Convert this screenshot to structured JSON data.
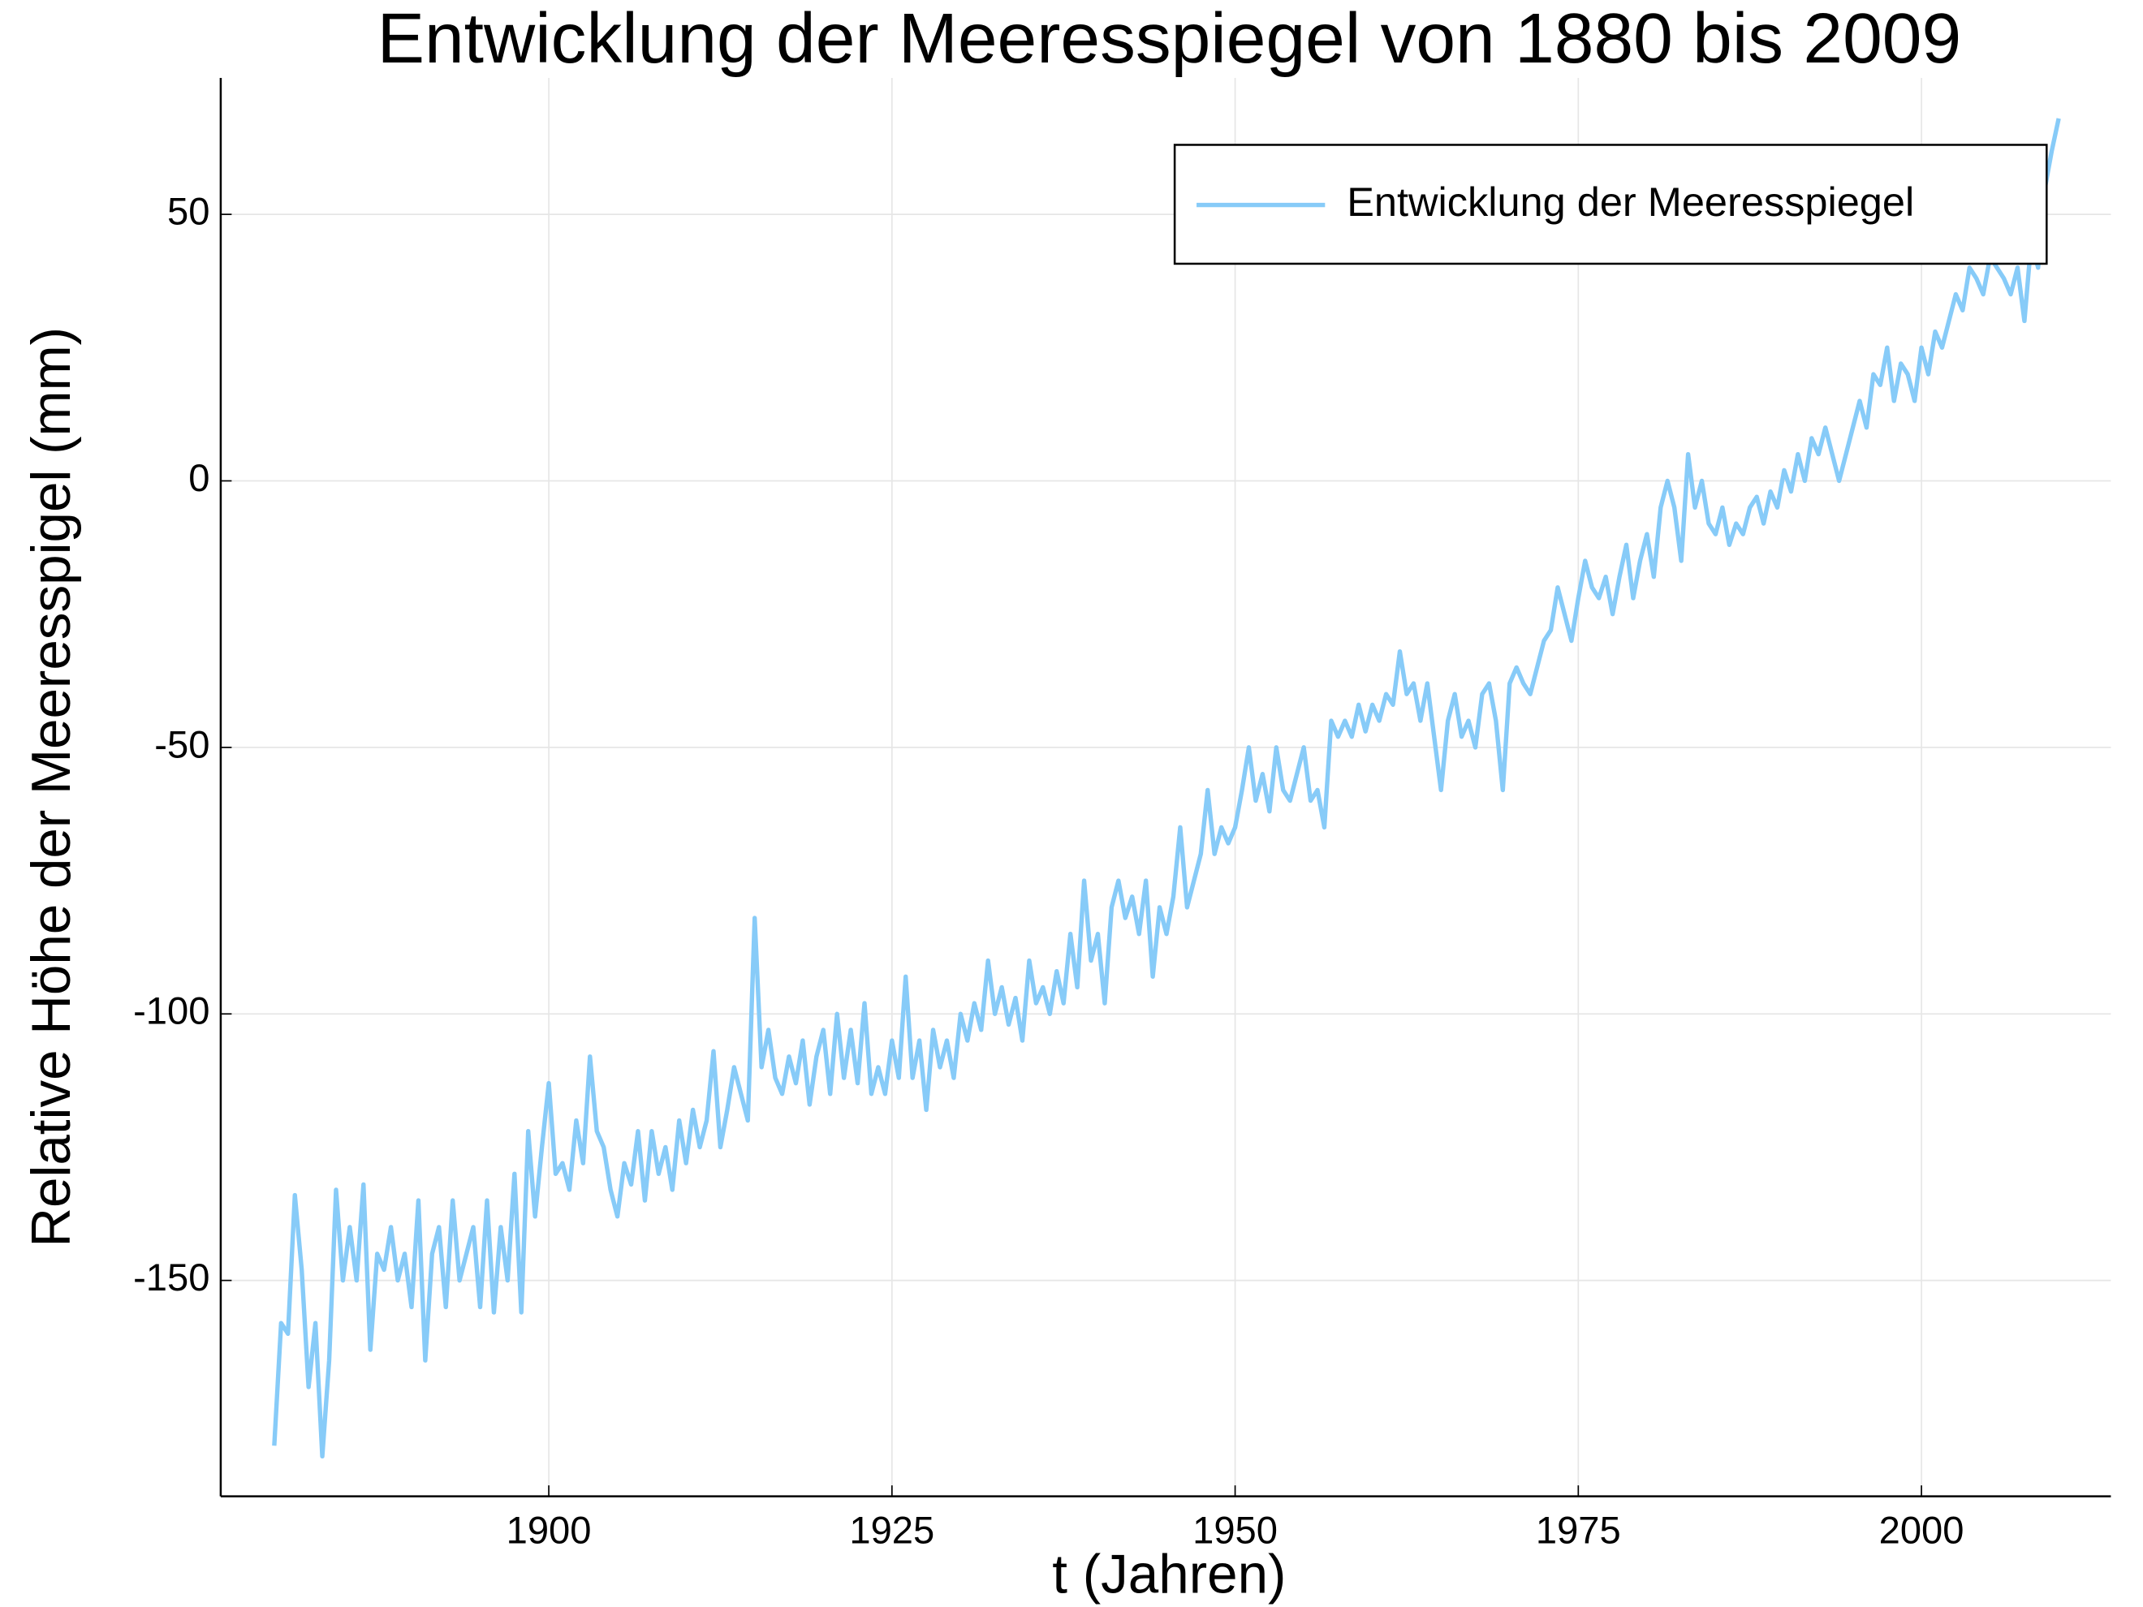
{
  "chart_data": {
    "type": "line",
    "title": "Entwicklung der Meeresspiegel von 1880 bis 2009",
    "xlabel": "t (Jahren)",
    "ylabel": "Relative Höhe der Meeresspigel (mm)",
    "xlim": [
      1876.1,
      2013.8
    ],
    "ylim": [
      -190.5,
      75.6
    ],
    "xticks": [
      1900,
      1925,
      1950,
      1975,
      2000
    ],
    "yticks": [
      -150,
      -100,
      -50,
      0,
      50
    ],
    "grid": true,
    "legend": "top right",
    "x": [
      1880,
      1880.5,
      1881,
      1881.5,
      1882,
      1882.5,
      1883,
      1883.5,
      1884,
      1884.5,
      1885,
      1885.5,
      1886,
      1886.5,
      1887,
      1887.5,
      1888,
      1888.5,
      1889,
      1889.5,
      1890,
      1890.5,
      1891,
      1891.5,
      1892,
      1892.5,
      1893,
      1893.5,
      1894,
      1894.5,
      1895,
      1895.5,
      1896,
      1896.5,
      1897,
      1897.5,
      1898,
      1898.5,
      1899,
      1899.5,
      1900,
      1900.5,
      1901,
      1901.5,
      1902,
      1902.5,
      1903,
      1903.5,
      1904,
      1904.5,
      1905,
      1905.5,
      1906,
      1906.5,
      1907,
      1907.5,
      1908,
      1908.5,
      1909,
      1909.5,
      1910,
      1910.5,
      1911,
      1911.5,
      1912,
      1912.5,
      1913,
      1913.5,
      1914,
      1914.5,
      1915,
      1915.5,
      1916,
      1916.5,
      1917,
      1917.5,
      1918,
      1918.5,
      1919,
      1919.5,
      1920,
      1920.5,
      1921,
      1921.5,
      1922,
      1922.5,
      1923,
      1923.5,
      1924,
      1924.5,
      1925,
      1925.5,
      1926,
      1926.5,
      1927,
      1927.5,
      1928,
      1928.5,
      1929,
      1929.5,
      1930,
      1930.5,
      1931,
      1931.5,
      1932,
      1932.5,
      1933,
      1933.5,
      1934,
      1934.5,
      1935,
      1935.5,
      1936,
      1936.5,
      1937,
      1937.5,
      1938,
      1938.5,
      1939,
      1939.5,
      1940,
      1940.5,
      1941,
      1941.5,
      1942,
      1942.5,
      1943,
      1943.5,
      1944,
      1944.5,
      1945,
      1945.5,
      1946,
      1946.5,
      1947,
      1947.5,
      1948,
      1948.5,
      1949,
      1949.5,
      1950,
      1950.5,
      1951,
      1951.5,
      1952,
      1952.5,
      1953,
      1953.5,
      1954,
      1954.5,
      1955,
      1955.5,
      1956,
      1956.5,
      1957,
      1957.5,
      1958,
      1958.5,
      1959,
      1959.5,
      1960,
      1960.5,
      1961,
      1961.5,
      1962,
      1962.5,
      1963,
      1963.5,
      1964,
      1964.5,
      1965,
      1965.5,
      1966,
      1966.5,
      1967,
      1967.5,
      1968,
      1968.5,
      1969,
      1969.5,
      1970,
      1970.5,
      1971,
      1971.5,
      1972,
      1972.5,
      1973,
      1973.5,
      1974,
      1974.5,
      1975,
      1975.5,
      1976,
      1976.5,
      1977,
      1977.5,
      1978,
      1978.5,
      1979,
      1979.5,
      1980,
      1980.5,
      1981,
      1981.5,
      1982,
      1982.5,
      1983,
      1983.5,
      1984,
      1984.5,
      1985,
      1985.5,
      1986,
      1986.5,
      1987,
      1987.5,
      1988,
      1988.5,
      1989,
      1989.5,
      1990,
      1990.5,
      1991,
      1991.5,
      1992,
      1992.5,
      1993,
      1993.5,
      1994,
      1994.5,
      1995,
      1995.5,
      1996,
      1996.5,
      1997,
      1997.5,
      1998,
      1998.5,
      1999,
      1999.5,
      2000,
      2000.5,
      2001,
      2001.5,
      2002,
      2002.5,
      2003,
      2003.5,
      2004,
      2004.5,
      2005,
      2005.5,
      2006,
      2006.5,
      2007,
      2007.5,
      2008,
      2008.5,
      2009,
      2009.5,
      2010
    ],
    "series": [
      {
        "name": "Entwicklung der Meeresspiegel",
        "color": "#87cbf8",
        "values": [
          -181,
          -158,
          -160,
          -134,
          -148,
          -170,
          -158,
          -183,
          -165,
          -133,
          -150,
          -140,
          -150,
          -132,
          -163,
          -145,
          -148,
          -140,
          -150,
          -145,
          -155,
          -135,
          -165,
          -145,
          -140,
          -155,
          -135,
          -150,
          -145,
          -140,
          -155,
          -135,
          -156,
          -140,
          -150,
          -130,
          -156,
          -122,
          -138,
          -125,
          -113,
          -130,
          -128,
          -133,
          -120,
          -128,
          -108,
          -122,
          -125,
          -133,
          -138,
          -128,
          -132,
          -122,
          -135,
          -122,
          -130,
          -125,
          -133,
          -120,
          -128,
          -118,
          -125,
          -120,
          -107,
          -125,
          -118,
          -110,
          -115,
          -120,
          -82,
          -110,
          -103,
          -112,
          -115,
          -108,
          -113,
          -105,
          -117,
          -108,
          -103,
          -115,
          -100,
          -112,
          -103,
          -113,
          -98,
          -115,
          -110,
          -115,
          -105,
          -112,
          -93,
          -112,
          -105,
          -118,
          -103,
          -110,
          -105,
          -112,
          -100,
          -105,
          -98,
          -103,
          -90,
          -100,
          -95,
          -102,
          -97,
          -105,
          -90,
          -98,
          -95,
          -100,
          -92,
          -98,
          -85,
          -95,
          -75,
          -90,
          -85,
          -98,
          -80,
          -75,
          -82,
          -78,
          -85,
          -75,
          -93,
          -80,
          -85,
          -78,
          -65,
          -80,
          -75,
          -70,
          -58,
          -70,
          -65,
          -68,
          -65,
          -58,
          -50,
          -60,
          -55,
          -62,
          -50,
          -58,
          -60,
          -55,
          -50,
          -60,
          -58,
          -65,
          -45,
          -48,
          -45,
          -48,
          -42,
          -47,
          -42,
          -45,
          -40,
          -42,
          -32,
          -40,
          -38,
          -45,
          -38,
          -48,
          -58,
          -45,
          -40,
          -48,
          -45,
          -50,
          -40,
          -38,
          -45,
          -58,
          -38,
          -35,
          -38,
          -40,
          -35,
          -30,
          -28,
          -20,
          -25,
          -30,
          -22,
          -15,
          -20,
          -22,
          -18,
          -25,
          -18,
          -12,
          -22,
          -15,
          -10,
          -18,
          -5,
          0,
          -5,
          -15,
          5,
          -5,
          0,
          -8,
          -10,
          -5,
          -12,
          -8,
          -10,
          -5,
          -3,
          -8,
          -2,
          -5,
          2,
          -2,
          5,
          0,
          8,
          5,
          10,
          5,
          0,
          5,
          10,
          15,
          10,
          20,
          18,
          25,
          15,
          22,
          20,
          15,
          25,
          20,
          28,
          25,
          30,
          35,
          32,
          40,
          38,
          35,
          42,
          40,
          38,
          35,
          40,
          30,
          45,
          40,
          55,
          62,
          68
        ]
      }
    ]
  }
}
